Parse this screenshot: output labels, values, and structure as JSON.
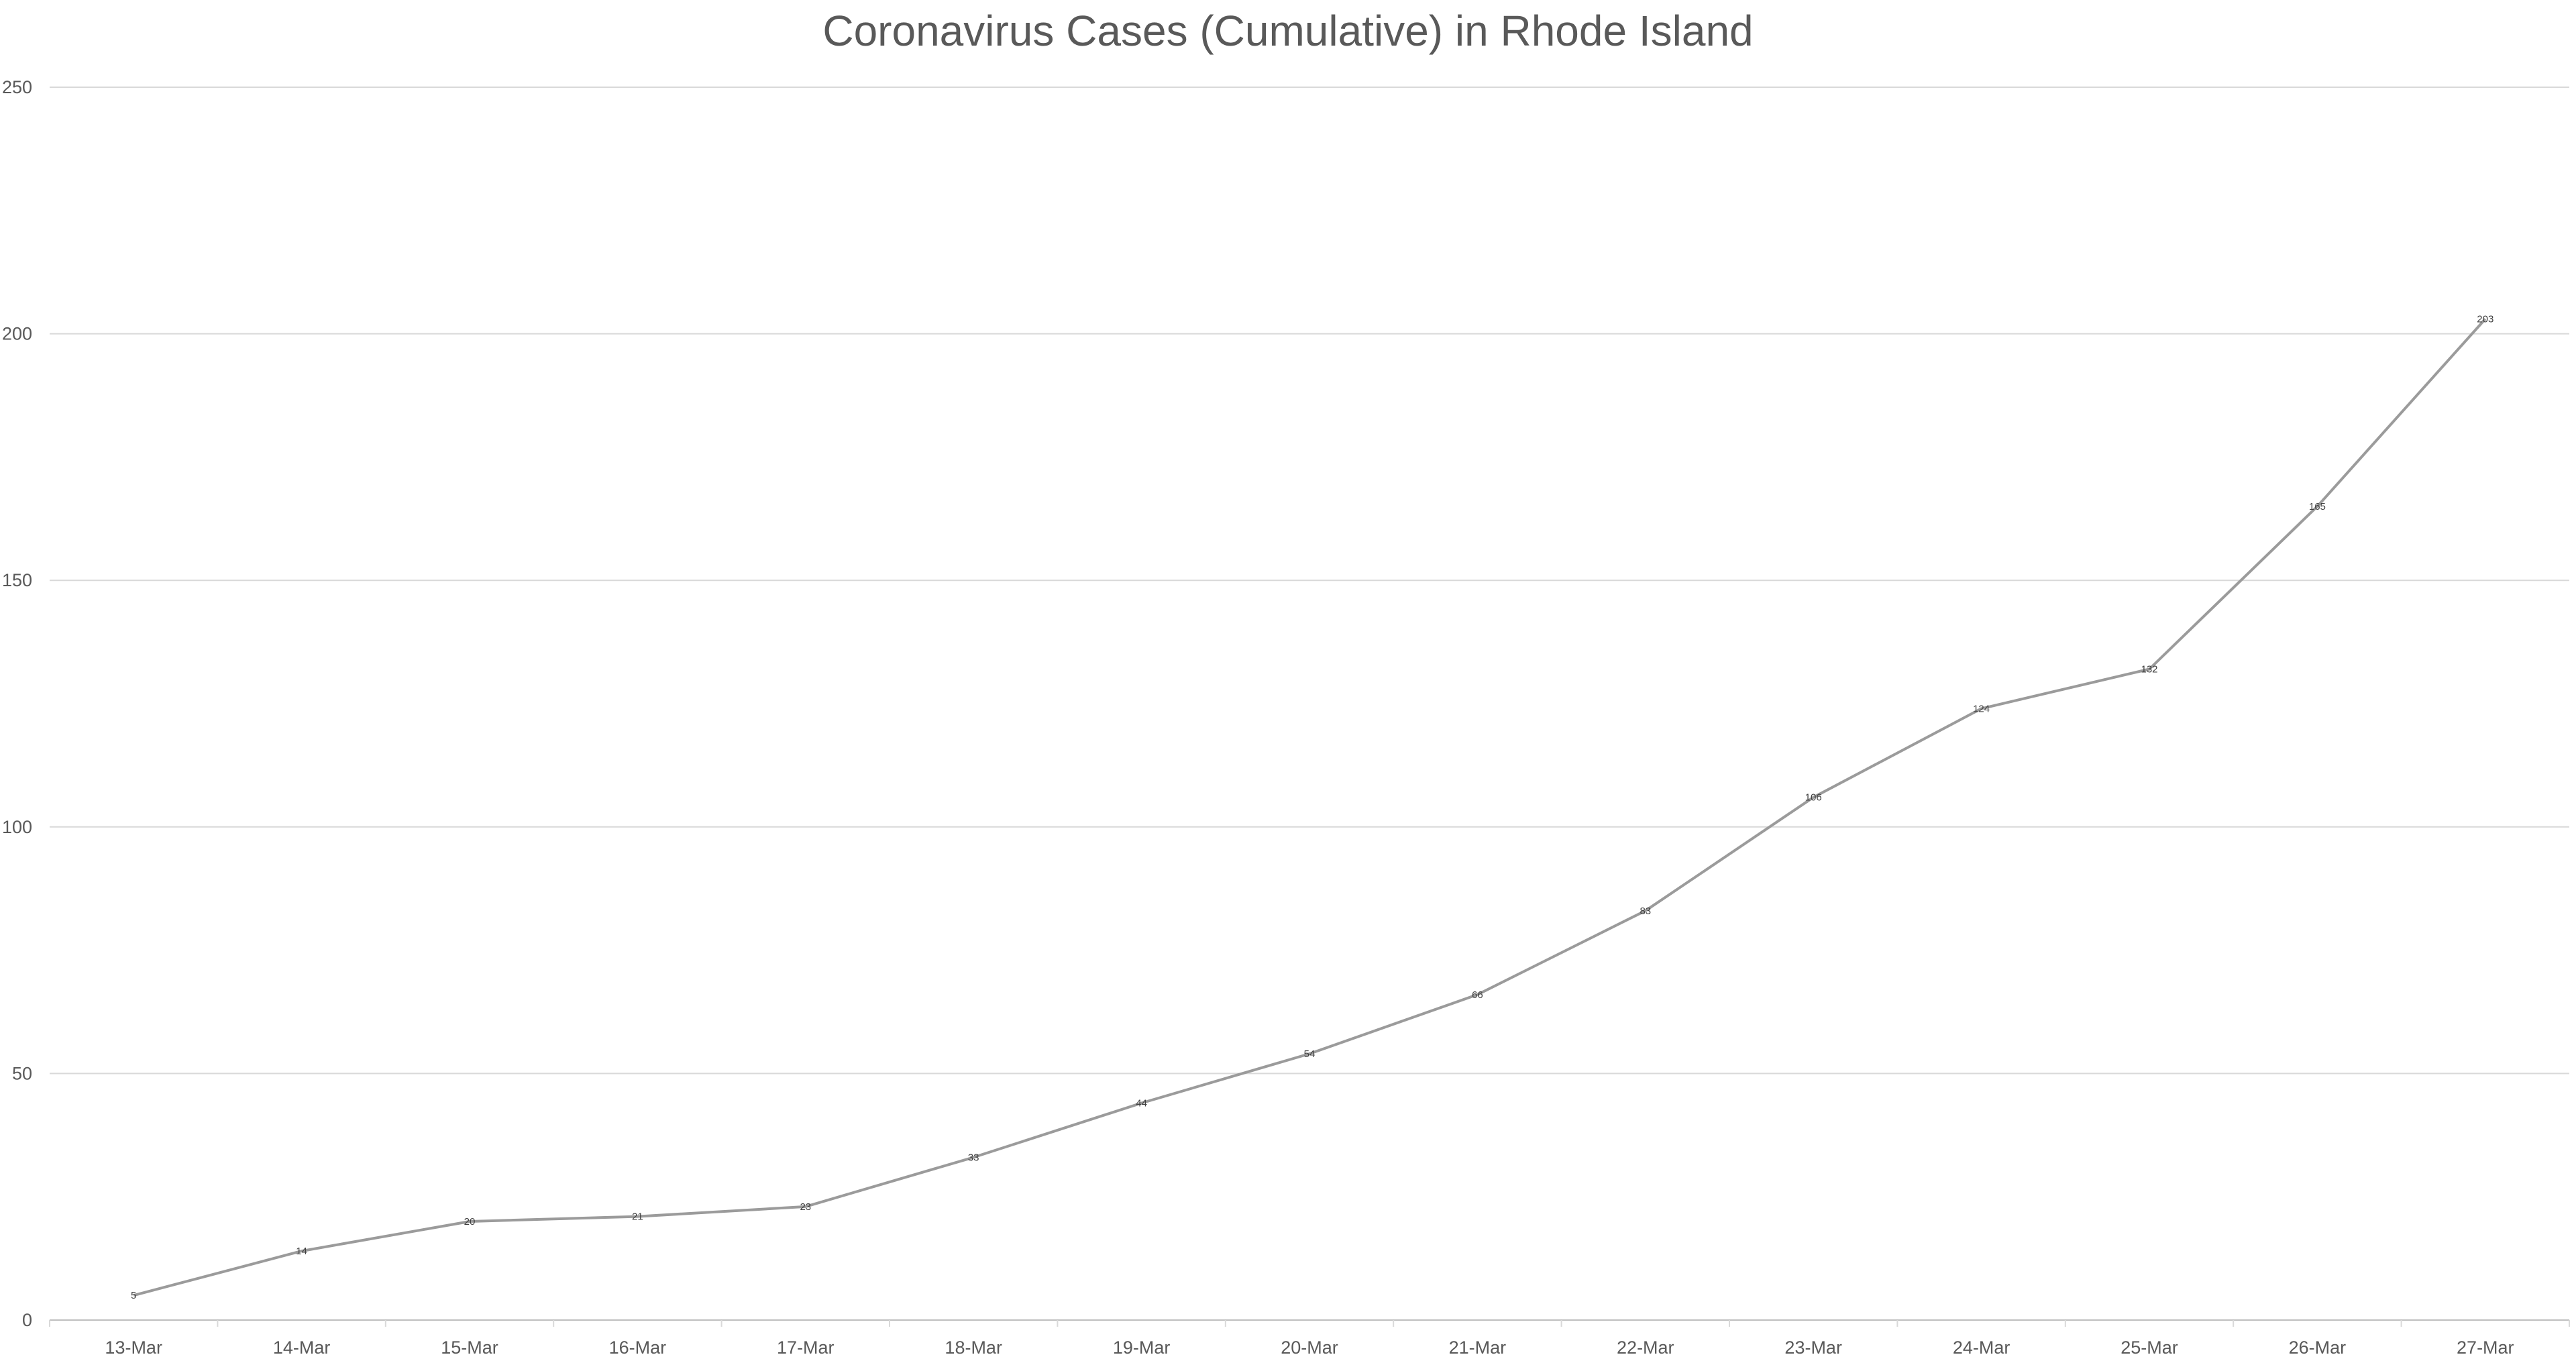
{
  "chart_data": {
    "type": "line",
    "title": "Coronavirus Cases (Cumulative) in Rhode Island",
    "xlabel": "",
    "ylabel": "",
    "categories": [
      "13-Mar",
      "14-Mar",
      "15-Mar",
      "16-Mar",
      "17-Mar",
      "18-Mar",
      "19-Mar",
      "20-Mar",
      "21-Mar",
      "22-Mar",
      "23-Mar",
      "24-Mar",
      "25-Mar",
      "26-Mar",
      "27-Mar"
    ],
    "series": [
      {
        "values": [
          5,
          14,
          20,
          21,
          23,
          33,
          44,
          54,
          66,
          83,
          106,
          124,
          132,
          165,
          203
        ]
      }
    ],
    "ylim": [
      0,
      250
    ],
    "yticks": [
      0,
      50,
      100,
      150,
      200,
      250
    ],
    "grid": true,
    "legend": "none",
    "data_labels": true,
    "line_color": "#9b9b9b"
  }
}
